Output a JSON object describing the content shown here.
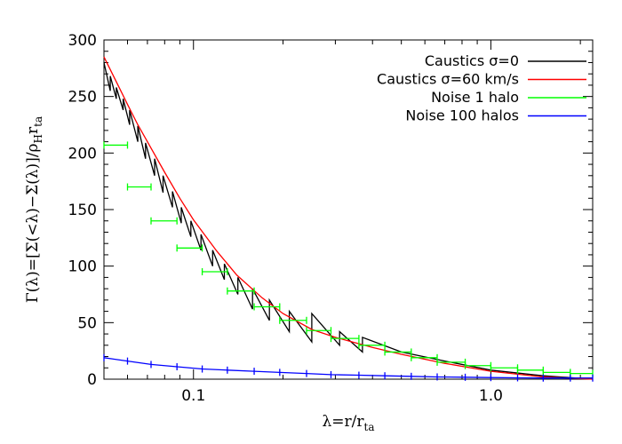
{
  "chart_data": {
    "type": "line",
    "x_scale": "log",
    "xlim": [
      0.05,
      2.2
    ],
    "ylim": [
      0,
      300
    ],
    "x_ticks": [
      {
        "value": 0.1,
        "label": "0.1"
      },
      {
        "value": 1.0,
        "label": "1.0"
      }
    ],
    "y_ticks": [
      {
        "value": 0,
        "label": "0"
      },
      {
        "value": 50,
        "label": "50"
      },
      {
        "value": 100,
        "label": "100"
      },
      {
        "value": 150,
        "label": "150"
      },
      {
        "value": 200,
        "label": "200"
      },
      {
        "value": 250,
        "label": "250"
      },
      {
        "value": 300,
        "label": "300"
      }
    ],
    "xlabel_main": "λ=r/r",
    "xlabel_sub": "ta",
    "ylabel_main": "Γ(λ)=[Σ(<λ)−Σ(λ)]/ρ",
    "ylabel_sub1": "H",
    "ylabel_mid": "r",
    "ylabel_sub2": "ta",
    "legend_position": "top-right",
    "grid": false,
    "series": [
      {
        "name": "Caustics σ=0",
        "color": "#000000",
        "style": "line",
        "x": [
          0.05,
          0.0525,
          0.0525,
          0.055,
          0.055,
          0.058,
          0.058,
          0.061,
          0.061,
          0.065,
          0.065,
          0.069,
          0.069,
          0.074,
          0.074,
          0.079,
          0.079,
          0.085,
          0.085,
          0.091,
          0.091,
          0.098,
          0.098,
          0.106,
          0.106,
          0.116,
          0.116,
          0.127,
          0.127,
          0.141,
          0.141,
          0.158,
          0.158,
          0.18,
          0.18,
          0.21,
          0.21,
          0.25,
          0.25,
          0.31,
          0.31,
          0.37,
          0.37,
          0.5,
          0.7,
          1.0,
          1.5,
          2.2
        ],
        "y": [
          280,
          255,
          268,
          248,
          258,
          238,
          248,
          225,
          238,
          210,
          224,
          195,
          209,
          180,
          195,
          165,
          180,
          152,
          166,
          138,
          152,
          126,
          140,
          114,
          128,
          100,
          114,
          88,
          102,
          75,
          90,
          62,
          80,
          52,
          70,
          42,
          60,
          33,
          58,
          30,
          42,
          24,
          37,
          24,
          16,
          8,
          3,
          0
        ]
      },
      {
        "name": "Caustics σ=60 km/s",
        "color": "#ff0000",
        "style": "line",
        "x": [
          0.05,
          0.055,
          0.06,
          0.065,
          0.07,
          0.08,
          0.09,
          0.1,
          0.12,
          0.14,
          0.17,
          0.2,
          0.25,
          0.3,
          0.4,
          0.5,
          0.7,
          1.0,
          1.5,
          2.2
        ],
        "y": [
          285,
          263,
          243,
          225,
          210,
          183,
          160,
          141,
          113,
          92,
          72,
          58,
          44,
          37,
          28,
          22,
          14,
          7,
          2,
          0
        ]
      },
      {
        "name": "Noise 1 halo",
        "color": "#00ff00",
        "style": "error-bars",
        "x": [
          [
            0.05,
            0.06
          ],
          [
            0.06,
            0.072
          ],
          [
            0.072,
            0.088
          ],
          [
            0.088,
            0.107
          ],
          [
            0.107,
            0.13
          ],
          [
            0.13,
            0.16
          ],
          [
            0.16,
            0.195
          ],
          [
            0.195,
            0.24
          ],
          [
            0.24,
            0.29
          ],
          [
            0.29,
            0.36
          ],
          [
            0.36,
            0.44
          ],
          [
            0.44,
            0.54
          ],
          [
            0.54,
            0.66
          ],
          [
            0.66,
            0.82
          ],
          [
            0.82,
            1.0
          ],
          [
            1.0,
            1.23
          ],
          [
            1.23,
            1.5
          ],
          [
            1.5,
            1.85
          ],
          [
            1.85,
            2.2
          ]
        ],
        "y": [
          207,
          170,
          140,
          116,
          95,
          78,
          64,
          52,
          43,
          36,
          30,
          24,
          19,
          15,
          12,
          10,
          8,
          6,
          5
        ]
      },
      {
        "name": "Noise 100 halos",
        "color": "#0000ff",
        "style": "line",
        "x": [
          0.05,
          0.06,
          0.072,
          0.088,
          0.107,
          0.13,
          0.16,
          0.195,
          0.24,
          0.29,
          0.36,
          0.44,
          0.54,
          0.66,
          0.82,
          1.0,
          1.23,
          1.5,
          1.85,
          2.2
        ],
        "y": [
          19,
          16,
          13,
          11,
          9,
          8,
          7,
          6,
          5,
          4,
          3.5,
          3,
          2.5,
          2,
          1.7,
          1.4,
          1.2,
          1,
          1,
          1
        ]
      }
    ]
  }
}
